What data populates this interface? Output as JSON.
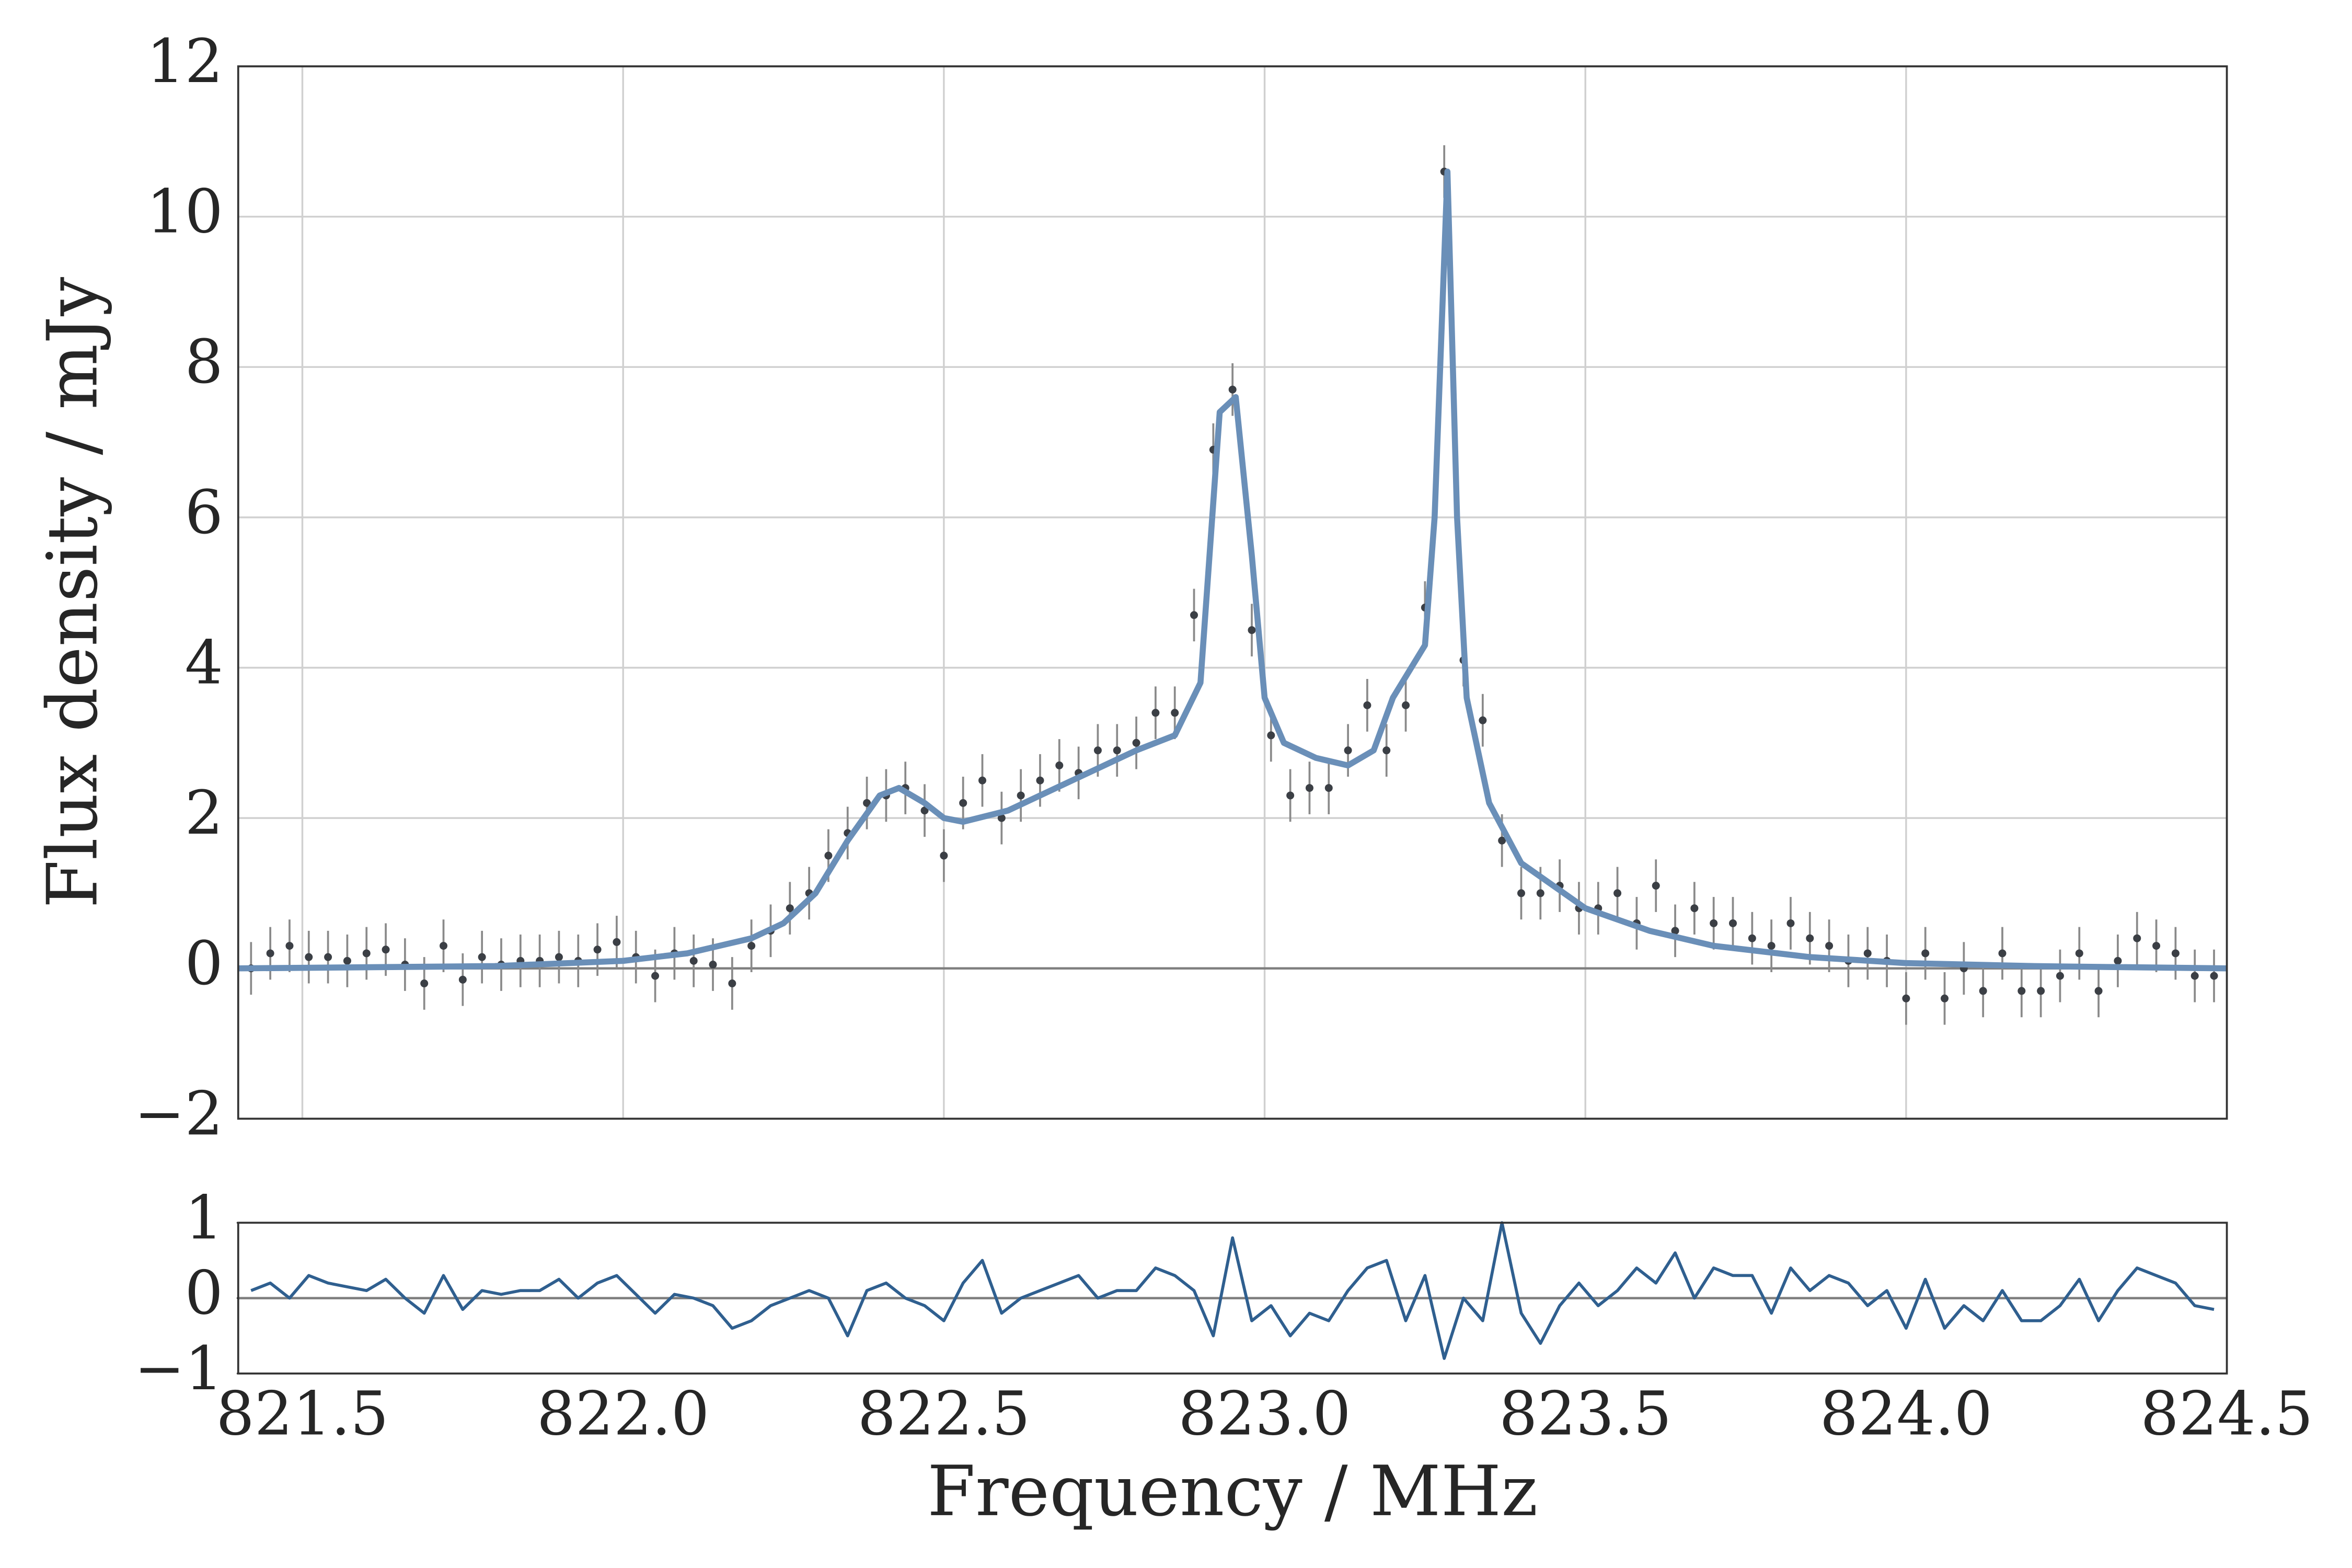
{
  "chart_data": [
    {
      "type": "scatter",
      "ylabel": "Flux density / mJy",
      "xlim": [
        821.4,
        824.5
      ],
      "ylim": [
        -2,
        12
      ],
      "xticks": [
        821.5,
        822,
        822.5,
        823,
        823.5,
        824,
        824.5
      ],
      "yticks": [
        {
          "value": -2,
          "label": "−2"
        },
        0,
        2,
        4,
        6,
        8,
        10,
        12
      ],
      "grid": true,
      "series": [
        {
          "type": "errorbar",
          "color": "#3b3f45",
          "error_color": "#8a8a8a",
          "yerr": 0.35,
          "x": [
            821.42,
            821.45,
            821.48,
            821.51,
            821.54,
            821.57,
            821.6,
            821.63,
            821.66,
            821.69,
            821.72,
            821.75,
            821.78,
            821.81,
            821.84,
            821.87,
            821.9,
            821.93,
            821.96,
            821.99,
            822.02,
            822.05,
            822.08,
            822.11,
            822.14,
            822.17,
            822.2,
            822.23,
            822.26,
            822.29,
            822.32,
            822.35,
            822.38,
            822.41,
            822.44,
            822.47,
            822.5,
            822.53,
            822.56,
            822.59,
            822.62,
            822.65,
            822.68,
            822.71,
            822.74,
            822.77,
            822.8,
            822.83,
            822.86,
            822.89,
            822.92,
            822.95,
            822.98,
            823.01,
            823.04,
            823.07,
            823.1,
            823.13,
            823.16,
            823.19,
            823.22,
            823.25,
            823.28,
            823.31,
            823.34,
            823.37,
            823.4,
            823.43,
            823.46,
            823.49,
            823.52,
            823.55,
            823.58,
            823.61,
            823.64,
            823.67,
            823.7,
            823.73,
            823.76,
            823.79,
            823.82,
            823.85,
            823.88,
            823.91,
            823.94,
            823.97,
            824,
            824.03,
            824.06,
            824.09,
            824.12,
            824.15,
            824.18,
            824.21,
            824.24,
            824.27,
            824.3,
            824.33,
            824.36,
            824.39,
            824.42,
            824.45,
            824.48
          ],
          "values": [
            0.0,
            0.2,
            0.3,
            0.15,
            0.15,
            0.1,
            0.2,
            0.25,
            0.05,
            -0.2,
            0.3,
            -0.15,
            0.15,
            0.05,
            0.1,
            0.1,
            0.15,
            0.1,
            0.25,
            0.35,
            0.15,
            -0.1,
            0.2,
            0.1,
            0.05,
            -0.2,
            0.3,
            0.5,
            0.8,
            1.0,
            1.5,
            1.8,
            2.2,
            2.3,
            2.4,
            2.1,
            1.5,
            2.2,
            2.5,
            2.0,
            2.3,
            2.5,
            2.7,
            2.6,
            2.9,
            2.9,
            3.0,
            3.4,
            3.4,
            4.7,
            6.9,
            7.7,
            4.5,
            3.1,
            2.3,
            2.4,
            2.4,
            2.9,
            3.5,
            2.9,
            3.5,
            4.8,
            10.6,
            4.1,
            3.3,
            1.7,
            1.0,
            1.0,
            1.1,
            0.8,
            0.8,
            1.0,
            0.6,
            1.1,
            0.5,
            0.8,
            0.6,
            0.6,
            0.4,
            0.3,
            0.6,
            0.4,
            0.3,
            0.1,
            0.2,
            0.1,
            -0.4,
            0.2,
            -0.4,
            0.0,
            -0.3,
            0.2,
            -0.3,
            -0.3,
            -0.1,
            0.2,
            -0.3,
            0.1,
            0.4,
            0.3,
            0.2,
            -0.1,
            -0.1
          ]
        },
        {
          "type": "line",
          "color": "#6a8fb8",
          "x": [
            821.4,
            821.8,
            822.0,
            822.1,
            822.2,
            822.25,
            822.3,
            822.35,
            822.4,
            822.43,
            822.47,
            822.5,
            822.53,
            822.6,
            822.7,
            822.8,
            822.86,
            822.9,
            822.93,
            822.955,
            822.98,
            823.0,
            823.03,
            823.08,
            823.13,
            823.17,
            823.2,
            823.25,
            823.265,
            823.285,
            823.3,
            823.315,
            823.35,
            823.4,
            823.5,
            823.6,
            823.7,
            823.85,
            824.0,
            824.2,
            824.5
          ],
          "values": [
            0.0,
            0.03,
            0.1,
            0.2,
            0.4,
            0.6,
            1.0,
            1.7,
            2.3,
            2.4,
            2.2,
            2.0,
            1.95,
            2.1,
            2.5,
            2.9,
            3.1,
            3.8,
            7.4,
            7.6,
            5.5,
            3.6,
            3.0,
            2.8,
            2.7,
            2.9,
            3.6,
            4.3,
            6.0,
            10.6,
            6.0,
            3.6,
            2.2,
            1.4,
            0.8,
            0.5,
            0.3,
            0.15,
            0.07,
            0.03,
            0.0
          ]
        }
      ]
    },
    {
      "type": "line",
      "xlabel": "Frequency / MHz",
      "color": "#2f5f8f",
      "xlim": [
        821.4,
        824.5
      ],
      "ylim": [
        -1,
        1
      ],
      "xticks": [
        821.5,
        {
          "value": 822,
          "label": "822.0"
        },
        822.5,
        {
          "value": 823,
          "label": "823.0"
        },
        823.5,
        {
          "value": 824,
          "label": "824.0"
        },
        824.5
      ],
      "yticks": [
        {
          "value": -1,
          "label": "−1"
        },
        0,
        1
      ],
      "grid": false,
      "x": [
        821.42,
        821.45,
        821.48,
        821.51,
        821.54,
        821.57,
        821.6,
        821.63,
        821.66,
        821.69,
        821.72,
        821.75,
        821.78,
        821.81,
        821.84,
        821.87,
        821.9,
        821.93,
        821.96,
        821.99,
        822.02,
        822.05,
        822.08,
        822.11,
        822.14,
        822.17,
        822.2,
        822.23,
        822.26,
        822.29,
        822.32,
        822.35,
        822.38,
        822.41,
        822.44,
        822.47,
        822.5,
        822.53,
        822.56,
        822.59,
        822.62,
        822.65,
        822.68,
        822.71,
        822.74,
        822.77,
        822.8,
        822.83,
        822.86,
        822.89,
        822.92,
        822.95,
        822.98,
        823.01,
        823.04,
        823.07,
        823.1,
        823.13,
        823.16,
        823.19,
        823.22,
        823.25,
        823.28,
        823.31,
        823.34,
        823.37,
        823.4,
        823.43,
        823.46,
        823.49,
        823.52,
        823.55,
        823.58,
        823.61,
        823.64,
        823.67,
        823.7,
        823.73,
        823.76,
        823.79,
        823.82,
        823.85,
        823.88,
        823.91,
        823.94,
        823.97,
        824,
        824.03,
        824.06,
        824.09,
        824.12,
        824.15,
        824.18,
        824.21,
        824.24,
        824.27,
        824.3,
        824.33,
        824.36,
        824.39,
        824.42,
        824.45,
        824.48
      ],
      "values": [
        0.1,
        0.2,
        0.0,
        0.3,
        0.2,
        0.15,
        0.1,
        0.25,
        0.0,
        -0.2,
        0.3,
        -0.15,
        0.1,
        0.05,
        0.1,
        0.1,
        0.25,
        0.0,
        0.2,
        0.3,
        0.05,
        -0.2,
        0.05,
        0.0,
        -0.1,
        -0.4,
        -0.3,
        -0.1,
        0.0,
        0.1,
        0.0,
        -0.5,
        0.1,
        0.2,
        0.0,
        -0.1,
        -0.3,
        0.2,
        0.5,
        -0.2,
        0.0,
        0.1,
        0.2,
        0.3,
        0.0,
        0.1,
        0.1,
        0.4,
        0.3,
        0.1,
        -0.5,
        0.8,
        -0.3,
        -0.1,
        -0.5,
        -0.2,
        -0.3,
        0.1,
        0.4,
        0.5,
        -0.3,
        0.3,
        -0.8,
        0.0,
        -0.3,
        1.0,
        -0.2,
        -0.6,
        -0.1,
        0.2,
        -0.1,
        0.1,
        0.4,
        0.2,
        0.6,
        0.0,
        0.4,
        0.3,
        0.3,
        -0.2,
        0.4,
        0.1,
        0.3,
        0.2,
        -0.1,
        0.1,
        -0.4,
        0.25,
        -0.4,
        -0.1,
        -0.3,
        0.1,
        -0.3,
        -0.3,
        -0.1,
        0.25,
        -0.3,
        0.1,
        0.4,
        0.3,
        0.2,
        -0.1,
        -0.15
      ]
    }
  ]
}
